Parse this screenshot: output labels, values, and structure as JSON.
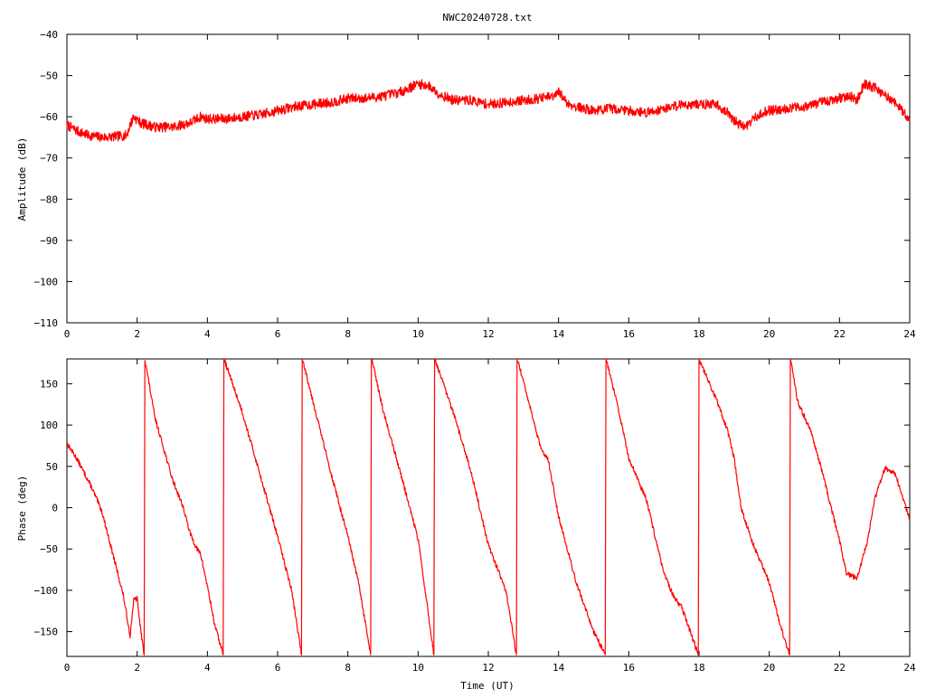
{
  "title": "NWC20240728.txt",
  "colors": {
    "series": "#ff0000",
    "axes": "#000000",
    "background": "#ffffff"
  },
  "chart_data": [
    {
      "type": "line",
      "title": "NWC20240728.txt",
      "xlabel": "",
      "ylabel": "Amplitude (dB)",
      "xlim": [
        0,
        24
      ],
      "ylim": [
        -110,
        -40
      ],
      "xticks": [
        "0",
        "2",
        "4",
        "6",
        "8",
        "10",
        "12",
        "14",
        "16",
        "18",
        "20",
        "22",
        "24"
      ],
      "yticks": [
        "-40",
        "-50",
        "-60",
        "-70",
        "-80",
        "-90",
        "-100",
        "-110"
      ],
      "grid": false,
      "series": [
        {
          "noise": 1.2,
          "x": [
            0,
            0.3,
            0.6,
            1.0,
            1.4,
            1.7,
            1.8,
            1.9,
            2.1,
            2.5,
            3.0,
            3.5,
            3.8,
            4.0,
            4.5,
            5.0,
            5.5,
            6.0,
            6.5,
            7.0,
            7.5,
            7.8,
            8.0,
            8.5,
            9.0,
            9.5,
            10.0,
            10.3,
            10.6,
            11.0,
            11.5,
            12.0,
            12.5,
            13.0,
            13.5,
            13.9,
            14.0,
            14.3,
            14.7,
            15.0,
            15.5,
            16.0,
            16.5,
            17.0,
            17.5,
            18.0,
            18.5,
            18.8,
            19.0,
            19.3,
            19.5,
            19.8,
            20.0,
            20.5,
            21.0,
            21.5,
            22.0,
            22.3,
            22.5,
            22.7,
            23.0,
            23.5,
            24.0
          ],
          "y": [
            -62,
            -63.5,
            -64.5,
            -65,
            -64.8,
            -64.5,
            -62,
            -60,
            -61.5,
            -62.5,
            -62.5,
            -61.5,
            -60,
            -60.5,
            -60.5,
            -60,
            -59.5,
            -58.5,
            -57.5,
            -57,
            -56.5,
            -56,
            -55.5,
            -55.5,
            -55,
            -54,
            -52,
            -52.5,
            -54.5,
            -56,
            -56,
            -57,
            -56.5,
            -56,
            -55.5,
            -55,
            -54,
            -57,
            -58,
            -58.5,
            -58,
            -58.5,
            -59,
            -58,
            -57,
            -57,
            -57,
            -59,
            -61,
            -62.5,
            -61,
            -59,
            -58.5,
            -58,
            -57.5,
            -56.5,
            -55.5,
            -55,
            -56,
            -52,
            -53,
            -56,
            -60.5
          ]
        }
      ]
    },
    {
      "type": "line",
      "title": "",
      "xlabel": "Time (UT)",
      "ylabel": "Phase (deg)",
      "xlim": [
        0,
        24
      ],
      "ylim": [
        -180,
        180
      ],
      "xticks": [
        "0",
        "2",
        "4",
        "6",
        "8",
        "10",
        "12",
        "14",
        "16",
        "18",
        "20",
        "22",
        "24"
      ],
      "yticks": [
        "150",
        "100",
        "50",
        "0",
        "-50",
        "-100",
        "-150"
      ],
      "grid": false,
      "series": [
        {
          "noise": 3,
          "x": [
            0,
            0.3,
            0.7,
            1.0,
            1.3,
            1.6,
            1.8,
            1.9,
            2.0,
            2.1,
            2.2,
            2.22,
            2.24,
            2.5,
            3.0,
            3.3,
            3.5,
            3.7,
            3.8,
            4.0,
            4.2,
            4.45,
            4.47,
            4.49,
            5.0,
            5.5,
            6.0,
            6.4,
            6.68,
            6.7,
            6.72,
            7.0,
            7.5,
            8.0,
            8.3,
            8.65,
            8.67,
            8.69,
            9.0,
            9.5,
            10.0,
            10.45,
            10.47,
            10.49,
            11.0,
            11.5,
            12.0,
            12.5,
            12.8,
            12.82,
            12.84,
            13.2,
            13.5,
            13.7,
            14.0,
            14.5,
            15.0,
            15.33,
            15.35,
            15.37,
            15.7,
            16.0,
            16.5,
            17.0,
            17.3,
            17.5,
            17.98,
            18.0,
            18.02,
            18.5,
            18.8,
            19.0,
            19.2,
            19.5,
            19.8,
            20.0,
            20.3,
            20.58,
            20.6,
            20.62,
            20.8,
            21.0,
            21.2,
            21.5,
            21.7,
            22.0,
            22.2,
            22.5,
            22.8,
            23.0,
            23.3,
            23.6,
            24.0
          ],
          "y": [
            78,
            58,
            25,
            -5,
            -55,
            -105,
            -155,
            -112,
            -110,
            -148,
            -178,
            180,
            175,
            110,
            35,
            2,
            -30,
            -50,
            -55,
            -95,
            -140,
            -178,
            180,
            178,
            115,
            40,
            -35,
            -100,
            -178,
            180,
            178,
            130,
            45,
            -35,
            -90,
            -178,
            180,
            178,
            118,
            42,
            -38,
            -178,
            180,
            178,
            115,
            45,
            -45,
            -100,
            -178,
            180,
            178,
            120,
            70,
            60,
            -10,
            -90,
            -150,
            -178,
            180,
            178,
            120,
            60,
            10,
            -80,
            -110,
            -120,
            -178,
            180,
            178,
            130,
            95,
            60,
            0,
            -40,
            -70,
            -90,
            -140,
            -178,
            180,
            178,
            130,
            110,
            90,
            45,
            10,
            -40,
            -80,
            -85,
            -40,
            10,
            48,
            40,
            -15
          ]
        }
      ]
    }
  ]
}
